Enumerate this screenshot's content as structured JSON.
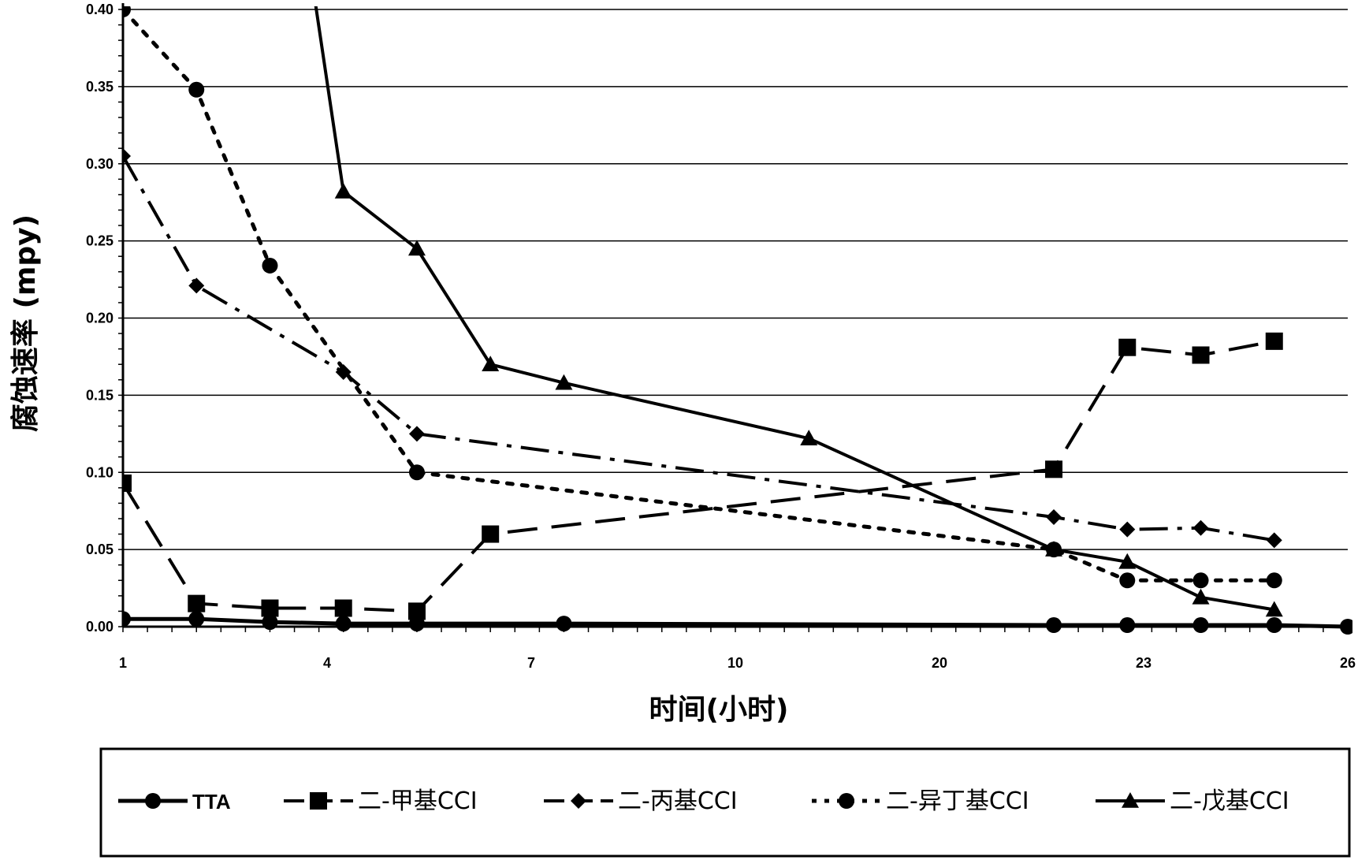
{
  "chart_data": {
    "type": "line",
    "xlabel": "时间(小时)",
    "ylabel": "腐蚀速率 (mpy)",
    "x_tick_labels": [
      "1",
      "4",
      "7",
      "10",
      "20",
      "23",
      "26"
    ],
    "y_tick_labels": [
      "0.00",
      "0.05",
      "0.10",
      "0.15",
      "0.20",
      "0.25",
      "0.30",
      "0.35",
      "0.40"
    ],
    "ylim": [
      0,
      0.4
    ],
    "grid": true,
    "legend_position": "bottom",
    "series": [
      {
        "name": "TTA",
        "marker": "circle",
        "dash": "solid",
        "stroke": 5,
        "x": [
          1,
          4,
          10,
          20,
          23,
          26
        ],
        "values": [
          0.005,
          0.003,
          0.002,
          0.001,
          0.001,
          0.0
        ]
      },
      {
        "name": "二-甲基CCI",
        "marker": "square",
        "dash": "long-dash",
        "stroke": 4,
        "x": [
          1,
          4,
          7,
          20,
          23
        ],
        "values": [
          0.093,
          0.012,
          0.01,
          0.102,
          0.176
        ]
      },
      {
        "name": "二-丙基CCI",
        "marker": "diamond",
        "dash": "dash-dot",
        "stroke": 4,
        "x": [
          1,
          4,
          7,
          20,
          23
        ],
        "values": [
          0.305,
          0.2,
          0.125,
          0.071,
          0.064
        ]
      },
      {
        "name": "二-异丁基CCI",
        "marker": "circle",
        "dash": "dotted",
        "stroke": 5,
        "x": [
          1,
          4,
          7,
          20,
          23
        ],
        "values": [
          0.4,
          0.234,
          0.1,
          0.05,
          0.03
        ]
      },
      {
        "name": "二-戊基CCI",
        "marker": "triangle",
        "dash": "solid",
        "stroke": 4,
        "x": [
          7,
          10,
          20,
          23
        ],
        "values": [
          0.245,
          0.158,
          0.05,
          0.019
        ]
      }
    ],
    "series_points": [
      [
        [
          1,
          0.005
        ],
        [
          2.5,
          0.005
        ],
        [
          4,
          0.003
        ],
        [
          5.5,
          0.002
        ],
        [
          7,
          0.002
        ],
        [
          10,
          0.002
        ],
        [
          20,
          0.001
        ],
        [
          21.5,
          0.001
        ],
        [
          23,
          0.001
        ],
        [
          24.5,
          0.001
        ],
        [
          26,
          0.0
        ]
      ],
      [
        [
          1,
          0.093
        ],
        [
          2.5,
          0.015
        ],
        [
          4,
          0.012
        ],
        [
          5.5,
          0.012
        ],
        [
          7,
          0.01
        ],
        [
          8.5,
          0.06
        ],
        [
          20,
          0.102
        ],
        [
          21.5,
          0.181
        ],
        [
          23,
          0.176
        ],
        [
          24.5,
          0.185
        ]
      ],
      [
        [
          1,
          0.305
        ],
        [
          2.5,
          0.221
        ],
        [
          5.5,
          0.165
        ],
        [
          7,
          0.125
        ],
        [
          20,
          0.071
        ],
        [
          21.5,
          0.063
        ],
        [
          23,
          0.064
        ],
        [
          24.5,
          0.056
        ]
      ],
      [
        [
          1,
          0.4
        ],
        [
          2.5,
          0.348
        ],
        [
          4,
          0.234
        ],
        [
          7,
          0.1
        ],
        [
          20,
          0.05
        ],
        [
          21.5,
          0.03
        ],
        [
          23,
          0.03
        ],
        [
          24.5,
          0.03
        ]
      ],
      [
        [
          4.9,
          0.41
        ],
        [
          5.5,
          0.282
        ],
        [
          7,
          0.245
        ],
        [
          8.5,
          0.17
        ],
        [
          10,
          0.158
        ],
        [
          15,
          0.122
        ],
        [
          20,
          0.05
        ],
        [
          21.5,
          0.042
        ],
        [
          23,
          0.019
        ],
        [
          24.5,
          0.011
        ]
      ]
    ]
  }
}
